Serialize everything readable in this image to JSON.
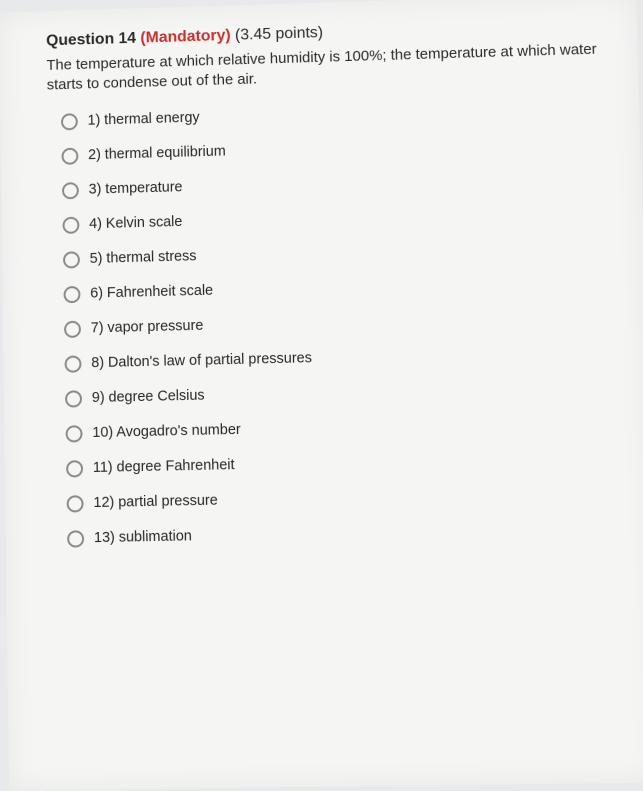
{
  "question": {
    "label": "Question 14",
    "mandatory": "(Mandatory)",
    "points": "(3.45 points)",
    "prompt": "The temperature at which relative humidity is 100%; the temperature at which water starts to condense out of the air."
  },
  "options": [
    "1)  thermal energy",
    "2)  thermal equilibrium",
    "3)  temperature",
    "4)  Kelvin scale",
    "5)  thermal stress",
    "6)  Fahrenheit scale",
    "7)  vapor pressure",
    "8)  Dalton's law of partial pressures",
    "9)  degree Celsius",
    "10)  Avogadro's number",
    "11)  degree Fahrenheit",
    "12)  partial pressure",
    "13)  sublimation"
  ],
  "style": {
    "background": "#f5f5f4",
    "text_color": "#2b2b2b",
    "mandatory_color": "#c9302c",
    "radio_border": "#8a8a88",
    "header_fontsize": 16,
    "body_fontsize": 15,
    "option_fontsize": 14.5
  }
}
